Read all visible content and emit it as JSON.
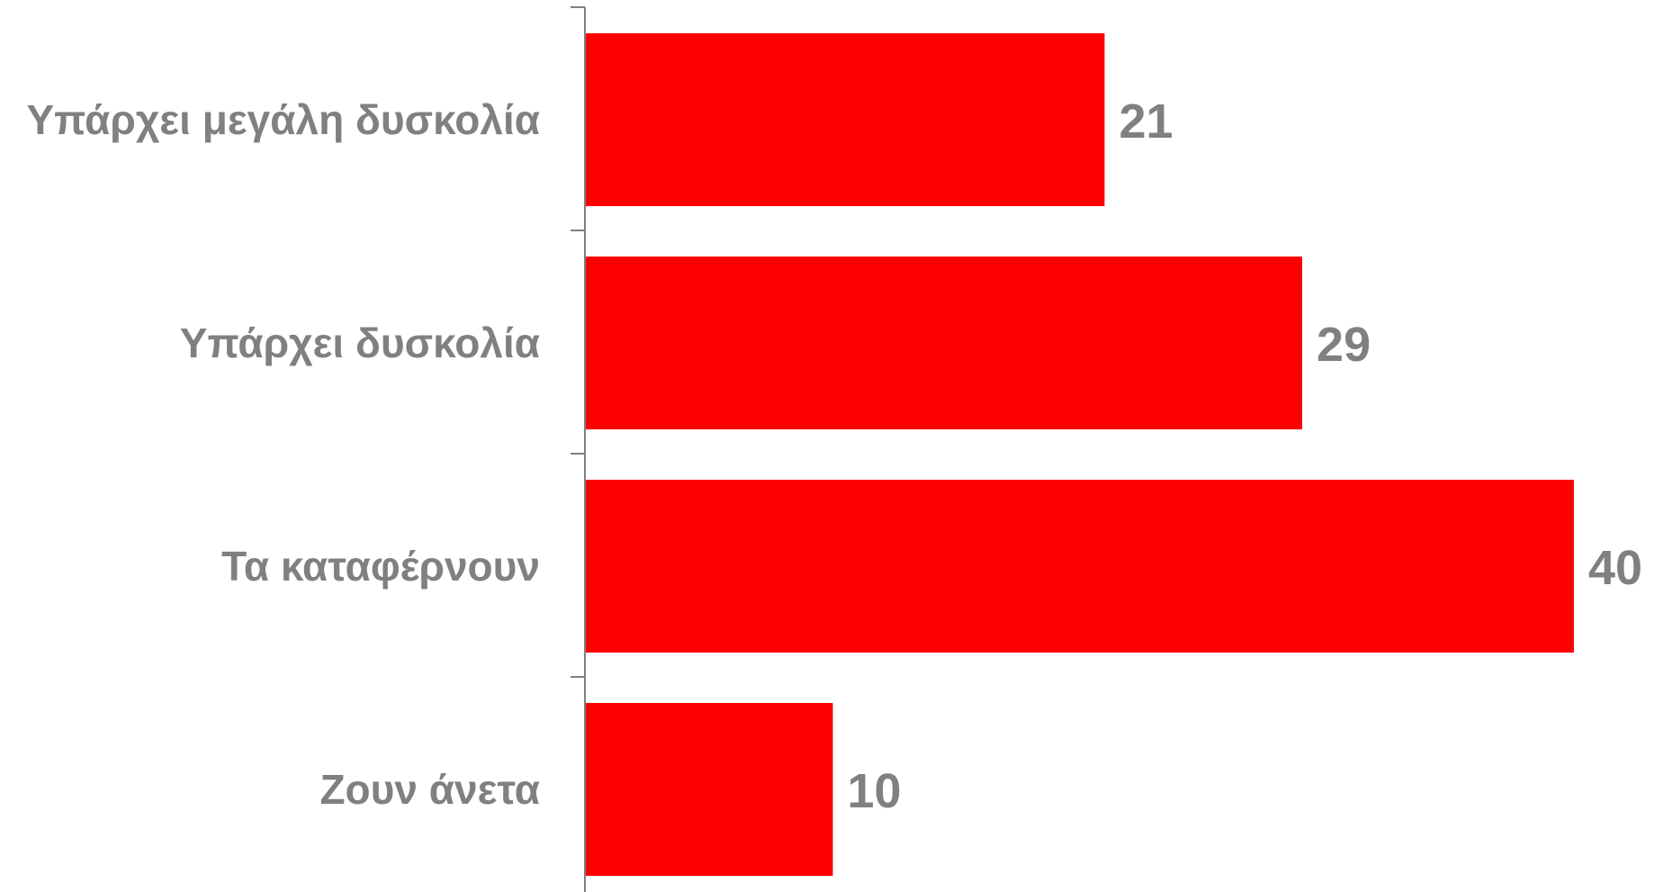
{
  "chart_data": {
    "type": "bar",
    "orientation": "horizontal",
    "categories": [
      "Υπάρχει μεγάλη δυσκολία",
      "Υπάρχει δυσκολία",
      "Τα καταφέρνουν",
      "Ζουν άνετα"
    ],
    "values": [
      21,
      29,
      40,
      10
    ],
    "value_labels": [
      "21",
      "29",
      "40",
      "10"
    ],
    "title": "",
    "xlabel": "",
    "ylabel": "",
    "xlim": [
      0,
      40
    ],
    "grid": false,
    "legend": "none",
    "colors": {
      "bar": "#ff0000",
      "text": "#808080",
      "axis": "#7f7f7f"
    }
  }
}
